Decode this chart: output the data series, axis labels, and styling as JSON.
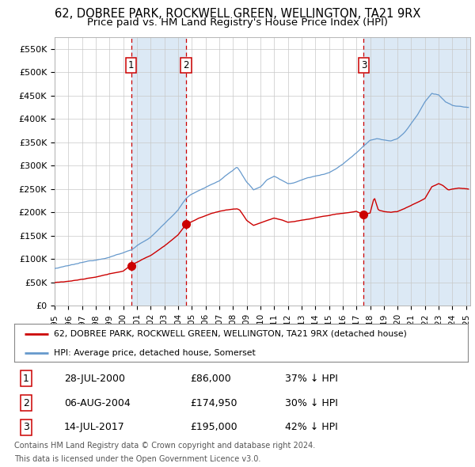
{
  "title1": "62, DOBREE PARK, ROCKWELL GREEN, WELLINGTON, TA21 9RX",
  "title2": "Price paid vs. HM Land Registry's House Price Index (HPI)",
  "xlim_start": 1995.0,
  "xlim_end": 2025.3,
  "ylim_min": 0,
  "ylim_max": 575000,
  "yticks": [
    0,
    50000,
    100000,
    150000,
    200000,
    250000,
    300000,
    350000,
    400000,
    450000,
    500000,
    550000
  ],
  "ytick_labels": [
    "£0",
    "£50K",
    "£100K",
    "£150K",
    "£200K",
    "£250K",
    "£300K",
    "£350K",
    "£400K",
    "£450K",
    "£500K",
    "£550K"
  ],
  "xticks": [
    1995,
    1996,
    1997,
    1998,
    1999,
    2000,
    2001,
    2002,
    2003,
    2004,
    2005,
    2006,
    2007,
    2008,
    2009,
    2010,
    2011,
    2012,
    2013,
    2014,
    2015,
    2016,
    2017,
    2018,
    2019,
    2020,
    2021,
    2022,
    2023,
    2024,
    2025
  ],
  "sale1_x": 2000.57,
  "sale1_y": 86000,
  "sale1_label": "1",
  "sale2_x": 2004.59,
  "sale2_y": 174950,
  "sale2_label": "2",
  "sale3_x": 2017.53,
  "sale3_y": 195000,
  "sale3_label": "3",
  "shading1_start": 2000.57,
  "shading1_end": 2004.59,
  "shading2_start": 2017.53,
  "shading2_end": 2025.3,
  "vline_color": "#cc0000",
  "shade_color": "#dce9f5",
  "bg_color": "#ffffff",
  "grid_color": "#c8c8c8",
  "red_line_color": "#cc0000",
  "blue_line_color": "#6699cc",
  "legend_label_red": "62, DOBREE PARK, ROCKWELL GREEN, WELLINGTON, TA21 9RX (detached house)",
  "legend_label_blue": "HPI: Average price, detached house, Somerset",
  "table_data": [
    [
      "1",
      "28-JUL-2000",
      "£86,000",
      "37% ↓ HPI"
    ],
    [
      "2",
      "06-AUG-2004",
      "£174,950",
      "30% ↓ HPI"
    ],
    [
      "3",
      "14-JUL-2017",
      "£195,000",
      "42% ↓ HPI"
    ]
  ],
  "footnote1": "Contains HM Land Registry data © Crown copyright and database right 2024.",
  "footnote2": "This data is licensed under the Open Government Licence v3.0."
}
